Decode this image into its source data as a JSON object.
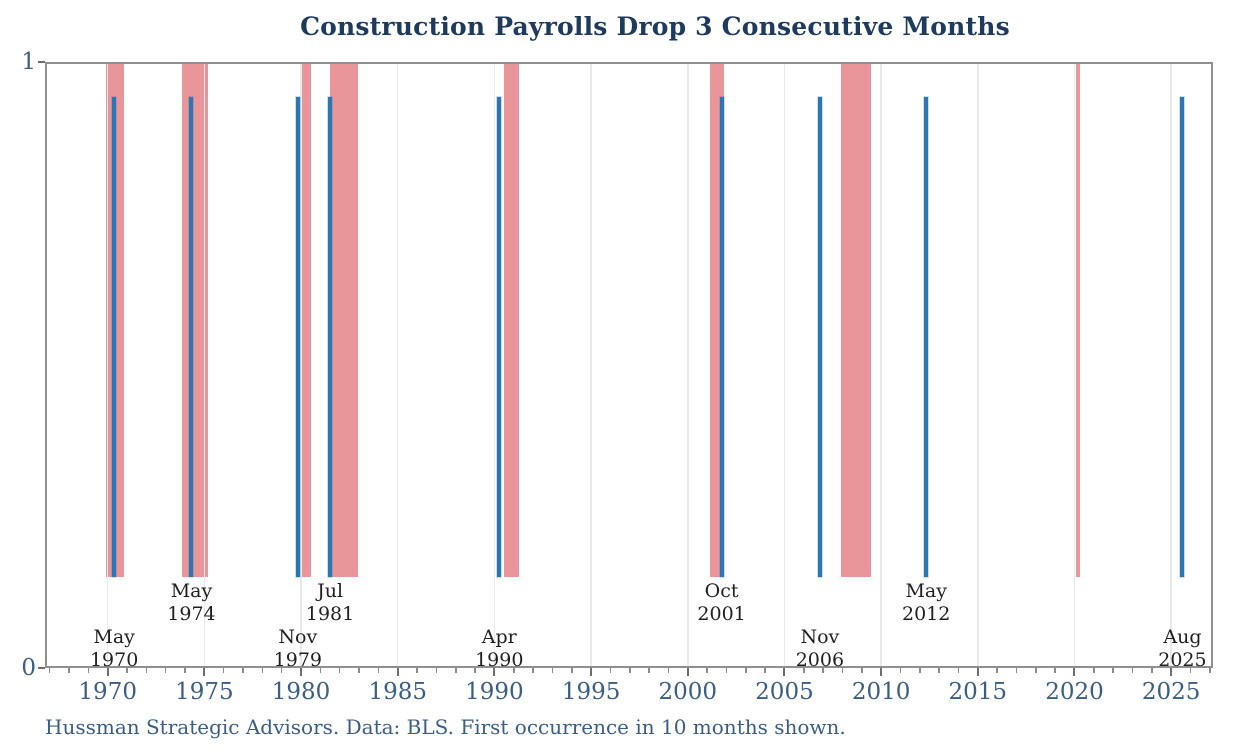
{
  "chart_data": {
    "type": "bar",
    "title": "Construction Payrolls Drop 3 Consecutive Months",
    "caption": "Hussman Strategic Advisors. Data: BLS. First occurrence in 10 months shown.",
    "xlabel": "",
    "ylabel": "",
    "xlim": [
      1966.86,
      2027.06
    ],
    "ylim": [
      0,
      1
    ],
    "grid": "vertical-major-only",
    "legend": "none",
    "y_ticks": [
      {
        "value": 0,
        "label": "0"
      },
      {
        "value": 1,
        "label": "1"
      }
    ],
    "x_ticks": [
      {
        "value": 1970,
        "label": "1970"
      },
      {
        "value": 1975,
        "label": "1975"
      },
      {
        "value": 1980,
        "label": "1980"
      },
      {
        "value": 1985,
        "label": "1985"
      },
      {
        "value": 1990,
        "label": "1990"
      },
      {
        "value": 1995,
        "label": "1995"
      },
      {
        "value": 2000,
        "label": "2000"
      },
      {
        "value": 2005,
        "label": "2005"
      },
      {
        "value": 2010,
        "label": "2010"
      },
      {
        "value": 2015,
        "label": "2015"
      },
      {
        "value": 2020,
        "label": "2020"
      },
      {
        "value": 2025,
        "label": "2025"
      }
    ],
    "minor_tick_interval_years": 1,
    "spike_baseline": 0.148,
    "spike_top": 0.945,
    "band_bottom": 0.148,
    "band_top": 1.0,
    "events": [
      {
        "month": "May",
        "year": "1970",
        "x": 1970.333,
        "value": 1,
        "label_row": "low"
      },
      {
        "month": "May",
        "year": "1974",
        "x": 1974.333,
        "value": 1,
        "label_row": "high"
      },
      {
        "month": "Nov",
        "year": "1979",
        "x": 1979.833,
        "value": 1,
        "label_row": "low"
      },
      {
        "month": "Jul",
        "year": "1981",
        "x": 1981.5,
        "value": 1,
        "label_row": "high"
      },
      {
        "month": "Apr",
        "year": "1990",
        "x": 1990.25,
        "value": 1,
        "label_row": "low"
      },
      {
        "month": "Oct",
        "year": "2001",
        "x": 2001.75,
        "value": 1,
        "label_row": "high"
      },
      {
        "month": "Nov",
        "year": "2006",
        "x": 2006.833,
        "value": 1,
        "label_row": "low"
      },
      {
        "month": "May",
        "year": "2012",
        "x": 2012.333,
        "value": 1,
        "label_row": "high"
      },
      {
        "month": "Aug",
        "year": "2025",
        "x": 2025.583,
        "value": 1,
        "label_row": "low"
      }
    ],
    "recession_bands": [
      {
        "start": 1969.92,
        "end": 1970.83
      },
      {
        "start": 1973.83,
        "end": 1975.17
      },
      {
        "start": 1980.0,
        "end": 1980.5
      },
      {
        "start": 1981.5,
        "end": 1982.92
      },
      {
        "start": 1990.5,
        "end": 1991.25
      },
      {
        "start": 2001.17,
        "end": 2001.88
      },
      {
        "start": 2007.95,
        "end": 2009.5
      },
      {
        "start": 2020.08,
        "end": 2020.29
      }
    ],
    "colors": {
      "spike": "#2d76b4",
      "recession_band": "#e8969a",
      "title": "#1e3a5c",
      "axis_text": "#3b5e84",
      "event_label": "#1f1f1f",
      "gridline": "#e9e9e9",
      "frame": "#8f8f8f",
      "caption": "#3b5e84"
    }
  }
}
